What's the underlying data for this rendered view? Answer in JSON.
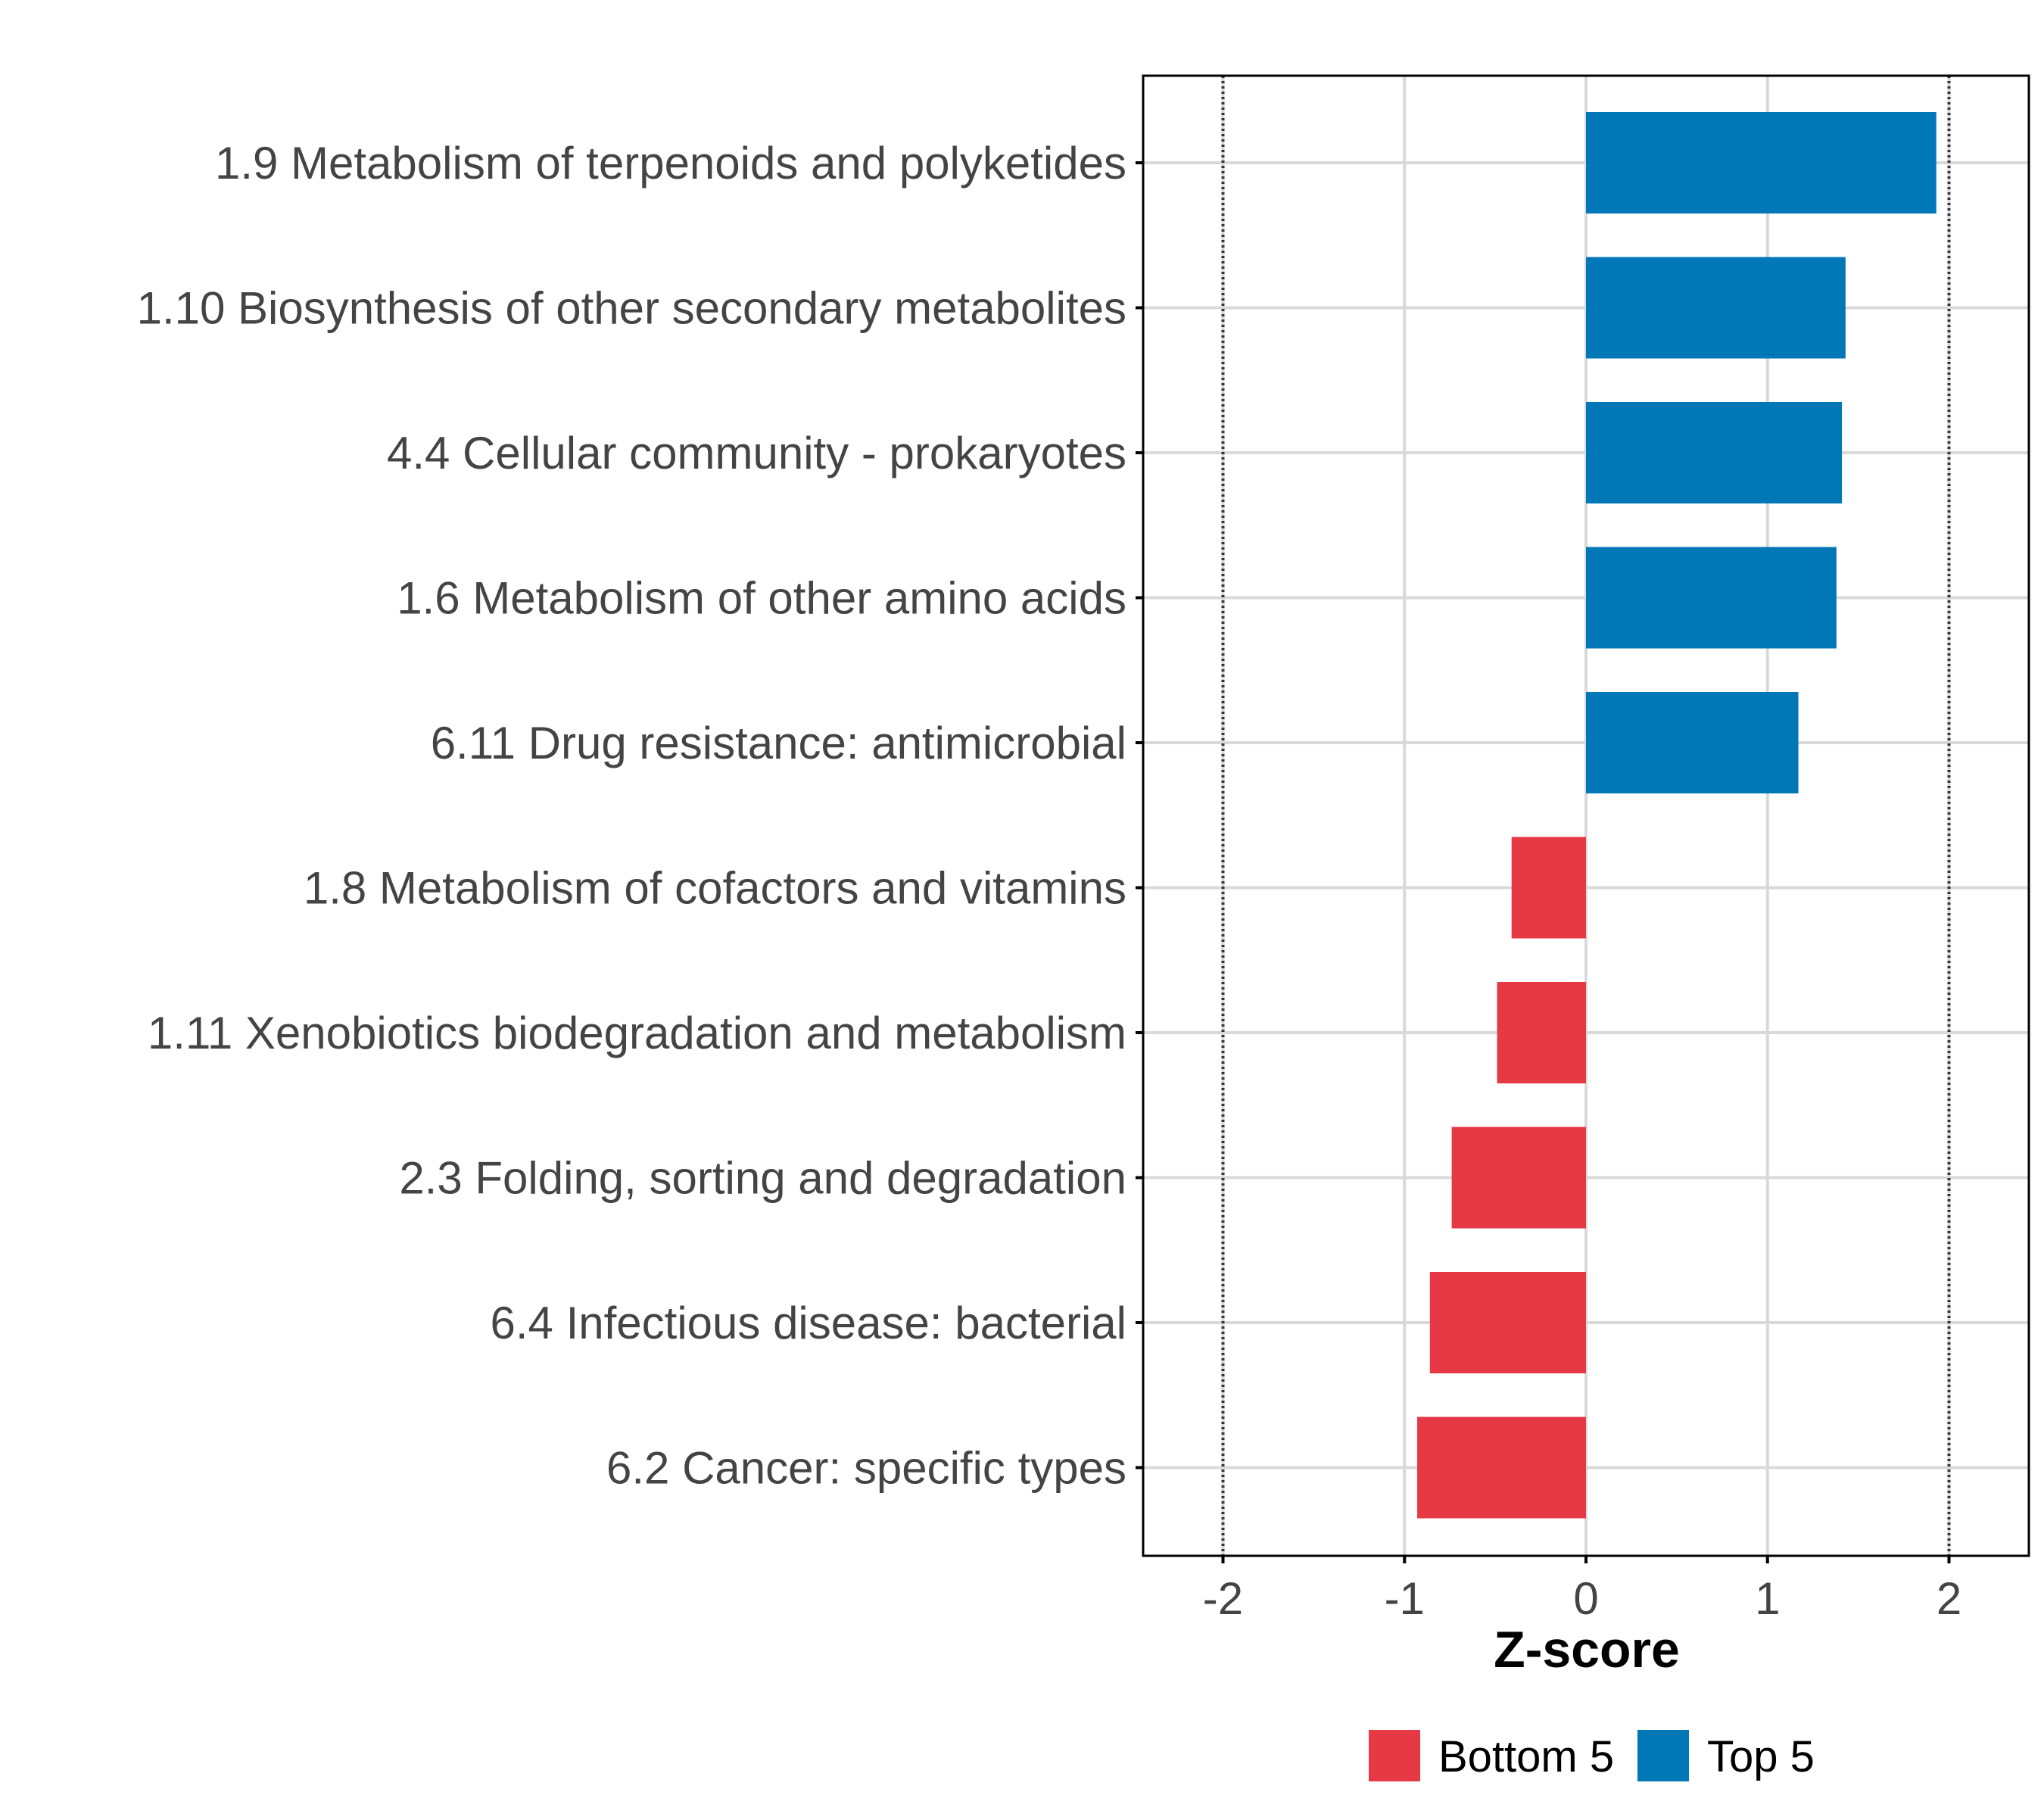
{
  "chart_data": {
    "type": "bar",
    "orientation": "horizontal",
    "categories": [
      "1.9 Metabolism of terpenoids and polyketides",
      "1.10 Biosynthesis of other secondary metabolites",
      "4.4 Cellular community - prokaryotes",
      "1.6 Metabolism of other amino acids",
      "6.11 Drug resistance: antimicrobial",
      "1.8 Metabolism of cofactors and vitamins",
      "1.11 Xenobiotics biodegradation and metabolism",
      "2.3 Folding, sorting and degradation",
      "6.4 Infectious disease: bacterial",
      "6.2 Cancer: specific types"
    ],
    "values": [
      1.93,
      1.43,
      1.41,
      1.38,
      1.17,
      -0.41,
      -0.49,
      -0.74,
      -0.86,
      -0.93
    ],
    "groups": [
      "Top 5",
      "Top 5",
      "Top 5",
      "Top 5",
      "Top 5",
      "Bottom 5",
      "Bottom 5",
      "Bottom 5",
      "Bottom 5",
      "Bottom 5"
    ],
    "xlabel": "Z-score",
    "ylabel": "",
    "xlim": [
      -2.44,
      2.44
    ],
    "xticks": [
      -2,
      -1,
      0,
      1,
      2
    ],
    "xtick_labels": [
      "-2",
      "-1",
      "0",
      "1",
      "2"
    ],
    "reference_lines": [
      -2,
      2
    ],
    "grid": true,
    "legend": {
      "position": "bottom",
      "entries": [
        {
          "label": "Bottom 5",
          "color": "#E63946"
        },
        {
          "label": "Top 5",
          "color": "#0077B6"
        }
      ]
    }
  },
  "colors": {
    "top": "#0077B6",
    "bottom": "#E63946",
    "grid": "#D9D9D9",
    "axis": "#000000",
    "text": "#444444"
  }
}
